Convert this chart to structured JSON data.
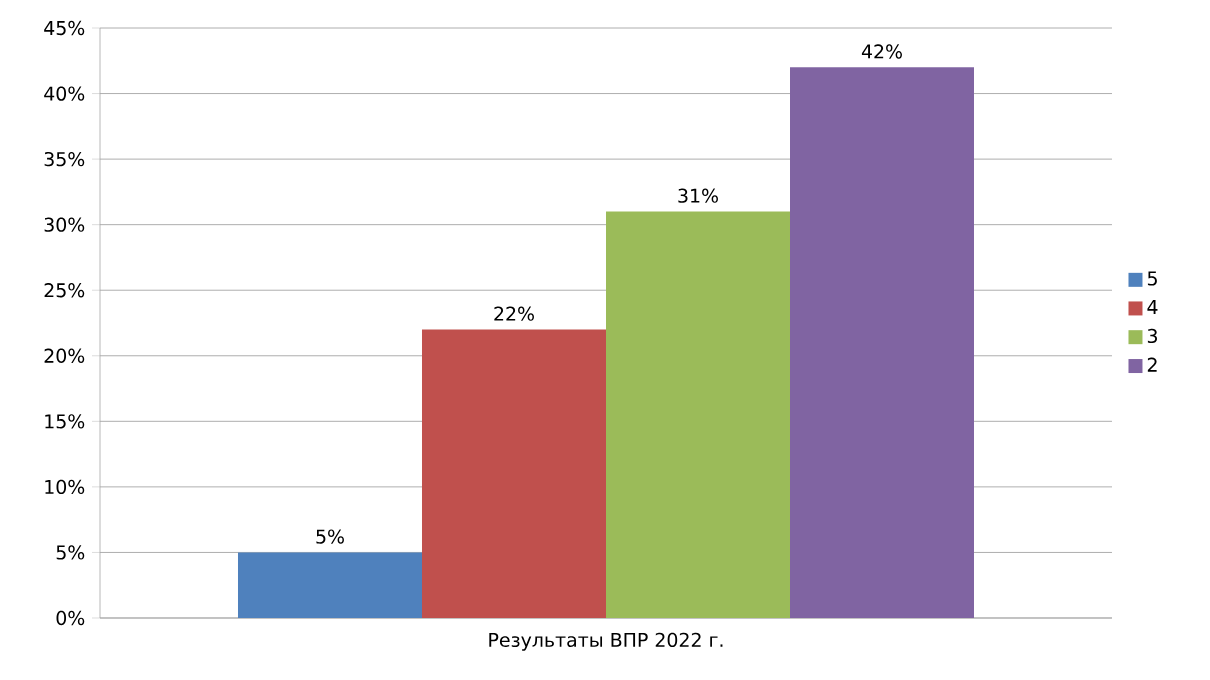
{
  "chart_data": {
    "type": "bar",
    "categories": [
      "Результаты ВПР 2022 г."
    ],
    "series": [
      {
        "name": "5",
        "color": "#4f81bd",
        "values": [
          5
        ],
        "value_labels": [
          "5%"
        ]
      },
      {
        "name": "4",
        "color": "#c0504d",
        "values": [
          22
        ],
        "value_labels": [
          "22%"
        ]
      },
      {
        "name": "3",
        "color": "#9bbb59",
        "values": [
          31
        ],
        "value_labels": [
          "31%"
        ]
      },
      {
        "name": "2",
        "color": "#8064a2",
        "values": [
          42
        ],
        "value_labels": [
          "42%"
        ]
      }
    ],
    "ylim": [
      0,
      45
    ],
    "yticks": [
      {
        "value": 0,
        "label": "0%"
      },
      {
        "value": 5,
        "label": "5%"
      },
      {
        "value": 10,
        "label": "10%"
      },
      {
        "value": 15,
        "label": "15%"
      },
      {
        "value": 20,
        "label": "20%"
      },
      {
        "value": 25,
        "label": "25%"
      },
      {
        "value": 30,
        "label": "30%"
      },
      {
        "value": 35,
        "label": "35%"
      },
      {
        "value": 40,
        "label": "40%"
      },
      {
        "value": 45,
        "label": "45%"
      }
    ],
    "grid": "y",
    "legend": "right"
  }
}
